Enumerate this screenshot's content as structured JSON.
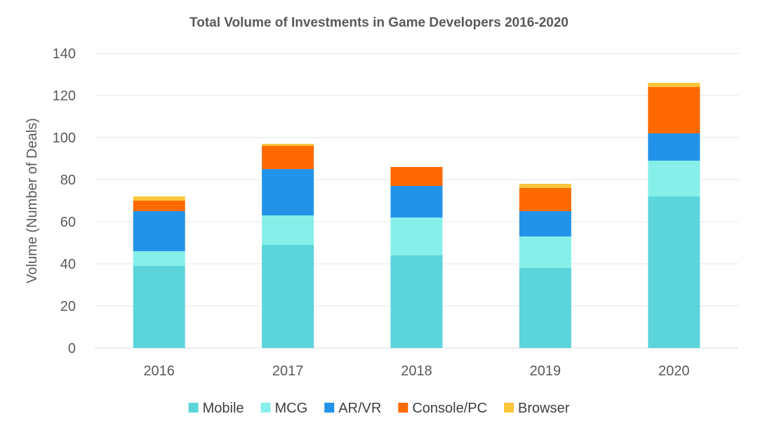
{
  "chart_data": {
    "type": "bar",
    "stacked": true,
    "title": "Total Volume of Investments in Game Developers 2016-2020",
    "xlabel": "",
    "ylabel": "Volume (Number of Deals)",
    "ylim": [
      0,
      140
    ],
    "yticks": [
      0,
      20,
      40,
      60,
      80,
      100,
      120,
      140
    ],
    "grid": true,
    "legend_position": "bottom",
    "categories": [
      "2016",
      "2017",
      "2018",
      "2019",
      "2020"
    ],
    "series": [
      {
        "name": "Mobile",
        "color": "#5bd5d9",
        "values": [
          39,
          49,
          44,
          38,
          72
        ]
      },
      {
        "name": "MCG",
        "color": "#86efea",
        "values": [
          7,
          14,
          18,
          15,
          17
        ]
      },
      {
        "name": "AR/VR",
        "color": "#2393ea",
        "values": [
          19,
          22,
          15,
          12,
          13
        ]
      },
      {
        "name": "Console/PC",
        "color": "#ff6a00",
        "values": [
          5,
          11,
          9,
          11,
          22
        ]
      },
      {
        "name": "Browser",
        "color": "#fcc63b",
        "values": [
          2,
          1,
          0,
          2,
          2
        ]
      }
    ]
  }
}
